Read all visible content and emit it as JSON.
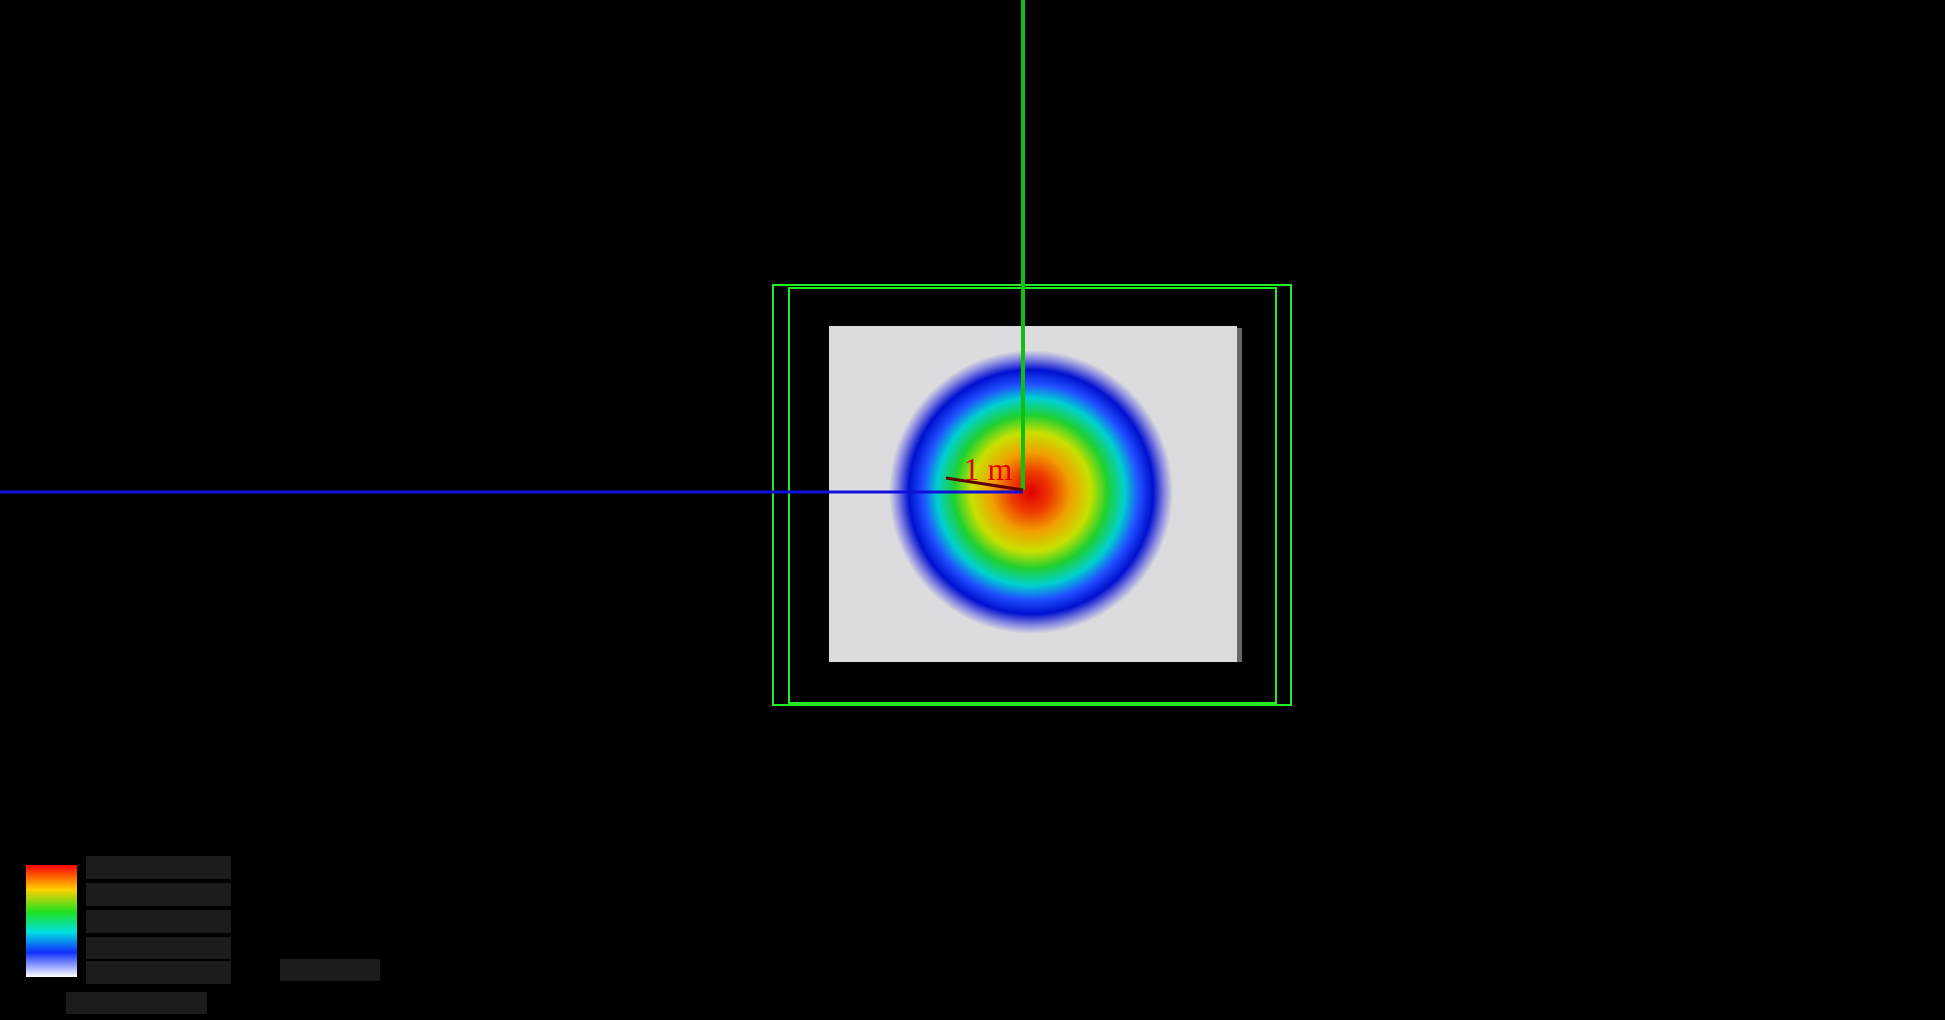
{
  "scene": {
    "axis_label": "1 m"
  }
}
